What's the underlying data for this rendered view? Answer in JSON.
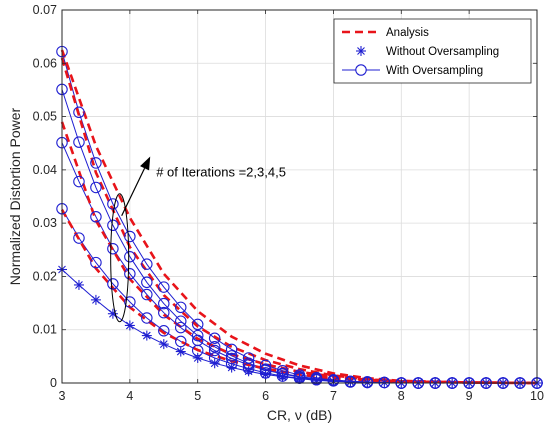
{
  "chart_data": {
    "type": "line",
    "xlabel": "CR, ν (dB)",
    "ylabel": "Normalized Distortion Power",
    "xlim": [
      3,
      10
    ],
    "ylim": [
      0,
      0.07
    ],
    "xticks": [
      3,
      4,
      5,
      6,
      7,
      8,
      9,
      10
    ],
    "yticks": [
      0,
      0.01,
      0.02,
      0.03,
      0.04,
      0.05,
      0.06,
      0.07
    ],
    "xtick_labels": [
      "3",
      "4",
      "5",
      "6",
      "7",
      "8",
      "9",
      "10"
    ],
    "ytick_labels": [
      "0",
      "0.01",
      "0.02",
      "0.03",
      "0.04",
      "0.05",
      "0.06",
      "0.07"
    ],
    "grid": true,
    "legend_position": "top-right",
    "legend": [
      {
        "name": "Analysis",
        "style": "dashed",
        "color": "#e8141a"
      },
      {
        "name": "Without Oversampling",
        "style": "asterisk",
        "color": "#1f1fd1"
      },
      {
        "name": "With Oversampling",
        "style": "circle-line",
        "color": "#1f1fd1"
      }
    ],
    "annotation": {
      "text": "# of Iterations =2,3,4,5",
      "ellipse_x": 3.85,
      "ellipse_y": 0.0235,
      "arrow_to_x": 4.3,
      "arrow_to_y": 0.0425
    },
    "analysis": [
      {
        "iterations": 2,
        "x": [
          3,
          3.5,
          4,
          4.5,
          5,
          5.5,
          6,
          6.5,
          7,
          7.5,
          8,
          9,
          10
        ],
        "y": [
          0.0325,
          0.0215,
          0.0142,
          0.0094,
          0.0062,
          0.0041,
          0.0027,
          0.0016,
          0.0009,
          0.0005,
          0.0002,
          0.0001,
          0.0
        ]
      },
      {
        "iterations": 3,
        "x": [
          3,
          3.5,
          4,
          4.5,
          5,
          5.5,
          6,
          6.5,
          7,
          7.5,
          8,
          9,
          10
        ],
        "y": [
          0.049,
          0.0305,
          0.0195,
          0.0128,
          0.0083,
          0.0054,
          0.0035,
          0.0021,
          0.0012,
          0.0006,
          0.0003,
          0.0001,
          0.0
        ]
      },
      {
        "iterations": 4,
        "x": [
          3,
          3.5,
          4,
          4.5,
          5,
          5.5,
          6,
          6.5,
          7,
          7.5,
          8,
          9,
          10
        ],
        "y": [
          0.061,
          0.0395,
          0.0255,
          0.0165,
          0.0106,
          0.0068,
          0.0043,
          0.0026,
          0.0014,
          0.0007,
          0.0003,
          0.0001,
          0.0
        ]
      },
      {
        "iterations": 5,
        "x": [
          3,
          3.5,
          4,
          4.5,
          5,
          5.5,
          6,
          6.5,
          7,
          7.5,
          8,
          9,
          10
        ],
        "y": [
          0.0625,
          0.0445,
          0.031,
          0.0205,
          0.0135,
          0.0087,
          0.0055,
          0.0033,
          0.0018,
          0.0009,
          0.0004,
          0.0001,
          0.0
        ]
      }
    ],
    "without_oversampling": {
      "x": [
        3,
        3.25,
        3.5,
        3.75,
        4,
        4.25,
        4.5,
        4.75,
        5,
        5.25,
        5.5,
        5.75,
        6,
        6.25,
        6.5,
        6.75,
        7,
        7.25,
        7.5,
        7.75,
        8,
        8.25,
        8.5,
        8.75,
        9,
        9.25,
        9.5,
        9.75,
        10
      ],
      "y": [
        0.0213,
        0.0184,
        0.0156,
        0.013,
        0.0108,
        0.0089,
        0.0073,
        0.0059,
        0.0047,
        0.0037,
        0.0029,
        0.0022,
        0.0016,
        0.0012,
        0.0008,
        0.0005,
        0.0003,
        0.0002,
        0.0001,
        0.0001,
        0.0,
        0.0,
        0.0,
        0.0,
        0.0,
        0.0,
        0.0,
        0.0,
        0.0
      ]
    },
    "with_oversampling": [
      {
        "iterations": 2,
        "x": [
          3,
          3.25,
          3.5,
          3.75,
          4,
          4.25,
          4.5,
          4.75,
          5,
          5.25,
          5.5,
          5.75,
          6,
          6.25,
          6.5,
          6.75,
          7,
          7.25,
          7.5,
          7.75,
          8,
          8.25,
          8.5,
          8.75,
          9,
          9.25,
          9.5,
          9.75,
          10
        ],
        "y": [
          0.0327,
          0.0272,
          0.0226,
          0.0186,
          0.0152,
          0.0122,
          0.0098,
          0.0078,
          0.0061,
          0.0047,
          0.0036,
          0.0027,
          0.0019,
          0.0013,
          0.0009,
          0.0006,
          0.0004,
          0.0002,
          0.0001,
          0.0001,
          0.0,
          0.0,
          0.0,
          0.0,
          0.0,
          0.0,
          0.0,
          0.0,
          0.0
        ]
      },
      {
        "iterations": 3,
        "x": [
          3,
          3.25,
          3.5,
          3.75,
          4,
          4.25,
          4.5,
          4.75,
          5,
          5.25,
          5.5,
          5.75,
          6,
          6.25,
          6.5,
          6.75,
          7,
          7.25,
          7.5,
          7.75,
          8,
          8.25,
          8.5,
          8.75,
          9,
          9.25,
          9.5,
          9.75,
          10
        ],
        "y": [
          0.0451,
          0.0378,
          0.0312,
          0.0252,
          0.0205,
          0.0166,
          0.0132,
          0.0104,
          0.008,
          0.0061,
          0.0046,
          0.0034,
          0.0024,
          0.0017,
          0.0011,
          0.0007,
          0.0004,
          0.0002,
          0.0001,
          0.0001,
          0.0,
          0.0,
          0.0,
          0.0,
          0.0,
          0.0,
          0.0,
          0.0,
          0.0
        ]
      },
      {
        "iterations": 4,
        "x": [
          3,
          3.25,
          3.5,
          3.75,
          4,
          4.25,
          4.5,
          4.75,
          5,
          5.25,
          5.5,
          5.75,
          6,
          6.25,
          6.5,
          6.75,
          7,
          7.25,
          7.5,
          7.75,
          8,
          8.25,
          8.5,
          8.75,
          9,
          9.25,
          9.5,
          9.75,
          10
        ],
        "y": [
          0.0551,
          0.0452,
          0.0367,
          0.0296,
          0.0237,
          0.0189,
          0.0149,
          0.0116,
          0.0089,
          0.0068,
          0.0051,
          0.0037,
          0.0026,
          0.0018,
          0.0012,
          0.0008,
          0.0005,
          0.0003,
          0.0002,
          0.0001,
          0.0,
          0.0,
          0.0,
          0.0,
          0.0,
          0.0,
          0.0,
          0.0,
          0.0
        ]
      },
      {
        "iterations": 5,
        "x": [
          3,
          3.25,
          3.5,
          3.75,
          4,
          4.25,
          4.5,
          4.75,
          5,
          5.25,
          5.5,
          5.75,
          6,
          6.25,
          6.5,
          6.75,
          7,
          7.25,
          7.5,
          7.75,
          8,
          8.25,
          8.5,
          8.75,
          9,
          9.25,
          9.5,
          9.75,
          10
        ],
        "y": [
          0.0622,
          0.0508,
          0.0413,
          0.0336,
          0.0275,
          0.0223,
          0.018,
          0.0142,
          0.011,
          0.0084,
          0.0063,
          0.0047,
          0.0033,
          0.0023,
          0.0015,
          0.001,
          0.0006,
          0.0003,
          0.0002,
          0.0001,
          0.0,
          0.0,
          0.0,
          0.0,
          0.0,
          0.0,
          0.0,
          0.0,
          0.0
        ]
      }
    ]
  }
}
